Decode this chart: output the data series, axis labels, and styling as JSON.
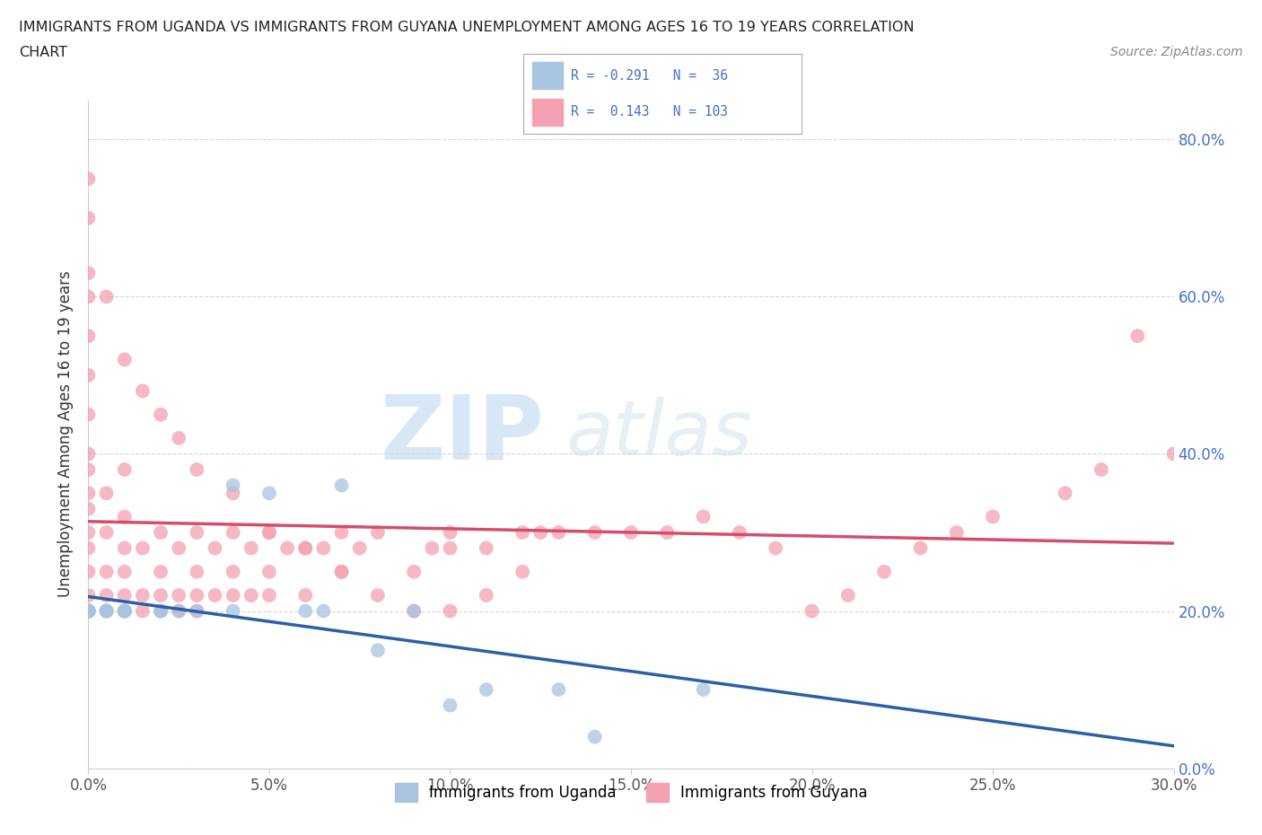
{
  "title_line1": "IMMIGRANTS FROM UGANDA VS IMMIGRANTS FROM GUYANA UNEMPLOYMENT AMONG AGES 16 TO 19 YEARS CORRELATION",
  "title_line2": "CHART",
  "source_text": "Source: ZipAtlas.com",
  "ylabel": "Unemployment Among Ages 16 to 19 years",
  "xlim": [
    0.0,
    0.3
  ],
  "ylim": [
    0.0,
    0.85
  ],
  "xtick_vals": [
    0.0,
    0.05,
    0.1,
    0.15,
    0.2,
    0.25,
    0.3
  ],
  "xticklabels": [
    "0.0%",
    "5.0%",
    "10.0%",
    "15.0%",
    "20.0%",
    "25.0%",
    "30.0%"
  ],
  "ytick_vals": [
    0.0,
    0.2,
    0.4,
    0.6,
    0.8
  ],
  "yticklabels": [
    "0.0%",
    "20.0%",
    "40.0%",
    "60.0%",
    "80.0%"
  ],
  "uganda_color": "#a8c4e0",
  "guyana_color": "#f4a0b0",
  "uganda_line_color": "#2b5fa8",
  "guyana_line_color": "#d64d6a",
  "uganda_R": -0.291,
  "uganda_N": 36,
  "guyana_R": 0.143,
  "guyana_N": 103,
  "watermark_zip": "ZIP",
  "watermark_atlas": "atlas",
  "legend_text_color": "#4472c4",
  "background_color": "#ffffff",
  "bottom_legend_uganda": "Immigrants from Uganda",
  "bottom_legend_guyana": "Immigrants from Guyana",
  "uganda_x": [
    0.0,
    0.0,
    0.0,
    0.0,
    0.0,
    0.0,
    0.0,
    0.0,
    0.0,
    0.0,
    0.005,
    0.005,
    0.005,
    0.01,
    0.01,
    0.01,
    0.01,
    0.01,
    0.02,
    0.02,
    0.025,
    0.03,
    0.03,
    0.04,
    0.04,
    0.05,
    0.06,
    0.065,
    0.07,
    0.08,
    0.09,
    0.1,
    0.11,
    0.13,
    0.14,
    0.17
  ],
  "uganda_y": [
    0.2,
    0.2,
    0.2,
    0.2,
    0.2,
    0.2,
    0.2,
    0.2,
    0.2,
    0.2,
    0.2,
    0.2,
    0.2,
    0.2,
    0.2,
    0.2,
    0.2,
    0.2,
    0.2,
    0.2,
    0.2,
    0.2,
    0.38,
    0.2,
    0.36,
    0.35,
    0.2,
    0.2,
    0.36,
    0.15,
    0.2,
    0.08,
    0.1,
    0.1,
    0.04,
    0.1
  ],
  "guyana_x": [
    0.0,
    0.0,
    0.0,
    0.0,
    0.0,
    0.0,
    0.0,
    0.0,
    0.0,
    0.0,
    0.0,
    0.0,
    0.0,
    0.0,
    0.0,
    0.0,
    0.005,
    0.005,
    0.005,
    0.005,
    0.01,
    0.01,
    0.01,
    0.01,
    0.01,
    0.01,
    0.015,
    0.015,
    0.015,
    0.02,
    0.02,
    0.02,
    0.02,
    0.025,
    0.025,
    0.025,
    0.03,
    0.03,
    0.03,
    0.03,
    0.035,
    0.035,
    0.04,
    0.04,
    0.04,
    0.045,
    0.045,
    0.05,
    0.05,
    0.05,
    0.055,
    0.06,
    0.06,
    0.065,
    0.07,
    0.07,
    0.075,
    0.08,
    0.09,
    0.09,
    0.095,
    0.1,
    0.1,
    0.11,
    0.115,
    0.12,
    0.125,
    0.13,
    0.14,
    0.15,
    0.16,
    0.17,
    0.18,
    0.19,
    0.2,
    0.21,
    0.22,
    0.23,
    0.24,
    0.25,
    0.27,
    0.28,
    0.29,
    0.3,
    0.0,
    0.0,
    0.0,
    0.0,
    0.005,
    0.01,
    0.015,
    0.02,
    0.025,
    0.03,
    0.04,
    0.05,
    0.06,
    0.07,
    0.08,
    0.09,
    0.1,
    0.11,
    0.12
  ],
  "guyana_y": [
    0.2,
    0.2,
    0.2,
    0.2,
    0.2,
    0.2,
    0.22,
    0.25,
    0.28,
    0.3,
    0.33,
    0.35,
    0.4,
    0.45,
    0.5,
    0.55,
    0.2,
    0.22,
    0.25,
    0.3,
    0.2,
    0.2,
    0.22,
    0.25,
    0.3,
    0.35,
    0.2,
    0.22,
    0.28,
    0.2,
    0.22,
    0.25,
    0.3,
    0.2,
    0.22,
    0.28,
    0.2,
    0.22,
    0.25,
    0.3,
    0.22,
    0.28,
    0.22,
    0.25,
    0.3,
    0.22,
    0.28,
    0.22,
    0.25,
    0.3,
    0.28,
    0.22,
    0.28,
    0.28,
    0.25,
    0.3,
    0.28,
    0.3,
    0.25,
    0.3,
    0.28,
    0.28,
    0.3,
    0.28,
    0.3,
    0.28,
    0.3,
    0.3,
    0.3,
    0.3,
    0.3,
    0.32,
    0.3,
    0.28,
    0.2,
    0.22,
    0.25,
    0.28,
    0.3,
    0.32,
    0.35,
    0.38,
    0.55,
    0.4,
    0.63,
    0.68,
    0.72,
    0.7,
    0.6,
    0.52,
    0.48,
    0.45,
    0.42,
    0.38,
    0.35,
    0.3,
    0.28,
    0.25,
    0.22,
    0.2,
    0.2,
    0.22,
    0.25
  ]
}
